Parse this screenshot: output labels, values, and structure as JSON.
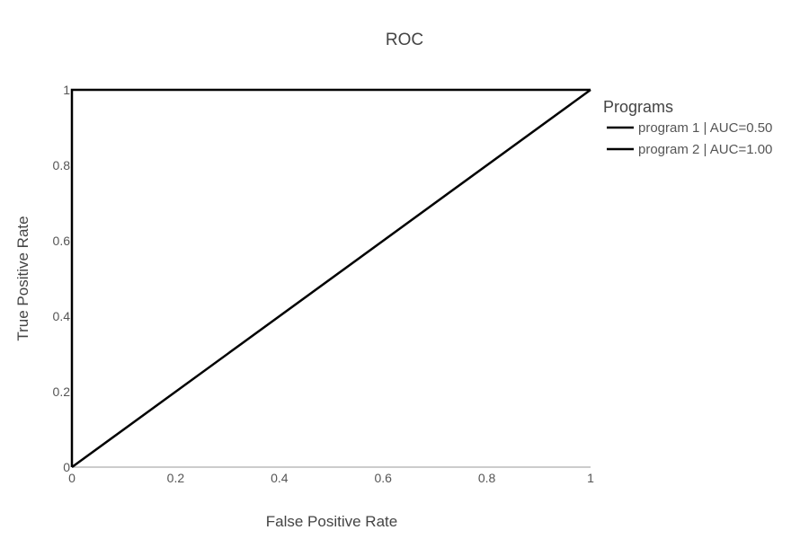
{
  "chart_data": {
    "type": "line",
    "title": "ROC",
    "xlabel": "False Positive Rate",
    "ylabel": "True Positive Rate",
    "xlim": [
      0,
      1
    ],
    "ylim": [
      0,
      1
    ],
    "x_ticks": [
      "0",
      "0.2",
      "0.4",
      "0.6",
      "0.8",
      "1"
    ],
    "y_ticks": [
      "0",
      "0.2",
      "0.4",
      "0.6",
      "0.8",
      "1"
    ],
    "grid": false,
    "legend": {
      "title": "Programs",
      "placement": "right"
    },
    "series": [
      {
        "name": "program 1 | AUC=0.50",
        "color": "#000000",
        "x": [
          0,
          1
        ],
        "y": [
          0,
          1
        ]
      },
      {
        "name": "program 2 | AUC=1.00",
        "color": "#000000",
        "x": [
          0,
          0,
          1
        ],
        "y": [
          0,
          1,
          1
        ]
      }
    ]
  }
}
